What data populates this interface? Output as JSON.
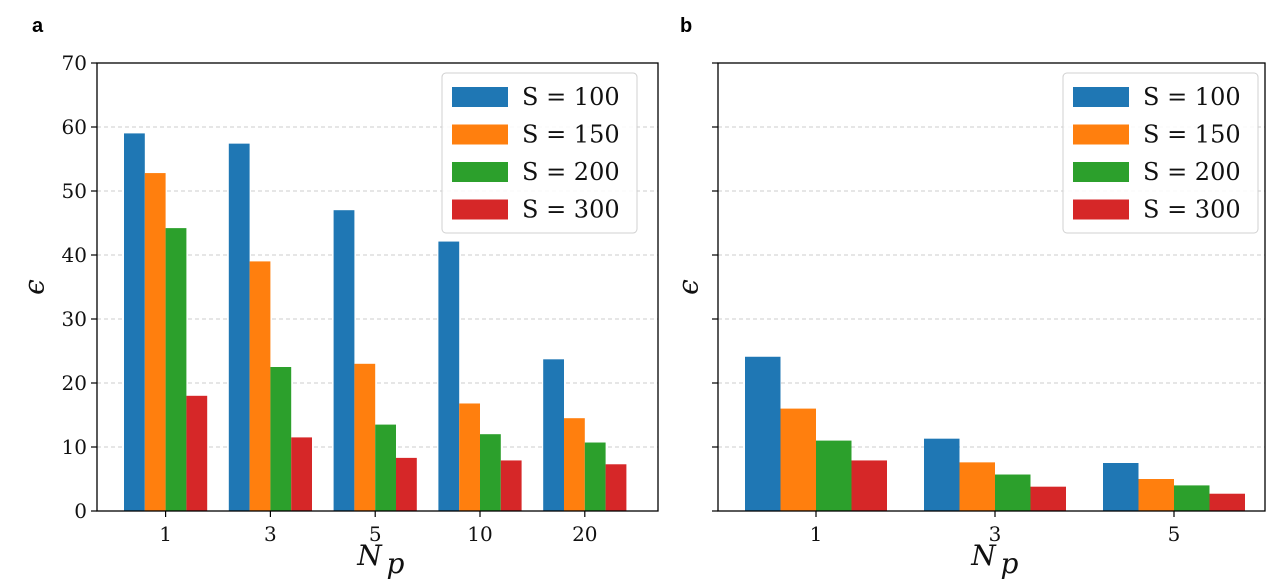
{
  "figure": {
    "panels": [
      {
        "label": "a",
        "chart_key": 0
      },
      {
        "label": "b",
        "chart_key": 1
      }
    ]
  },
  "chart_data": [
    {
      "type": "bar",
      "panel": "a",
      "categories": [
        "1",
        "3",
        "5",
        "10",
        "20"
      ],
      "series": [
        {
          "name": "S = 100",
          "color": "#1f77b4",
          "values": [
            59.0,
            57.4,
            47.0,
            42.1,
            23.7
          ]
        },
        {
          "name": "S = 150",
          "color": "#ff7f0e",
          "values": [
            52.8,
            39.0,
            23.0,
            16.8,
            14.5
          ]
        },
        {
          "name": "S = 200",
          "color": "#2ca02c",
          "values": [
            44.2,
            22.5,
            13.5,
            12.0,
            10.7
          ]
        },
        {
          "name": "S = 300",
          "color": "#d62728",
          "values": [
            18.0,
            11.5,
            8.3,
            7.9,
            7.3
          ]
        }
      ],
      "xlabel": "N",
      "xlabel_sub": "p",
      "ylabel": "ϵ",
      "ylim": [
        0,
        70
      ],
      "yticks": [
        0,
        10,
        20,
        30,
        40,
        50,
        60,
        70
      ],
      "grid": "horizontal-dashed",
      "legend": "top-right"
    },
    {
      "type": "bar",
      "panel": "b",
      "categories": [
        "1",
        "3",
        "5"
      ],
      "series": [
        {
          "name": "S = 100",
          "color": "#1f77b4",
          "values": [
            24.1,
            11.3,
            7.5
          ]
        },
        {
          "name": "S = 150",
          "color": "#ff7f0e",
          "values": [
            16.0,
            7.6,
            5.0
          ]
        },
        {
          "name": "S = 200",
          "color": "#2ca02c",
          "values": [
            11.0,
            5.7,
            4.0
          ]
        },
        {
          "name": "S = 300",
          "color": "#d62728",
          "values": [
            7.9,
            3.8,
            2.7
          ]
        }
      ],
      "xlabel": "N",
      "xlabel_sub": "p",
      "ylabel": "ϵ",
      "ylim": [
        0,
        70
      ],
      "yticks": [
        0,
        10,
        20,
        30,
        40,
        50,
        60,
        70
      ],
      "yticklabels_visible": false,
      "grid": "horizontal-dashed",
      "legend": "top-right"
    }
  ]
}
